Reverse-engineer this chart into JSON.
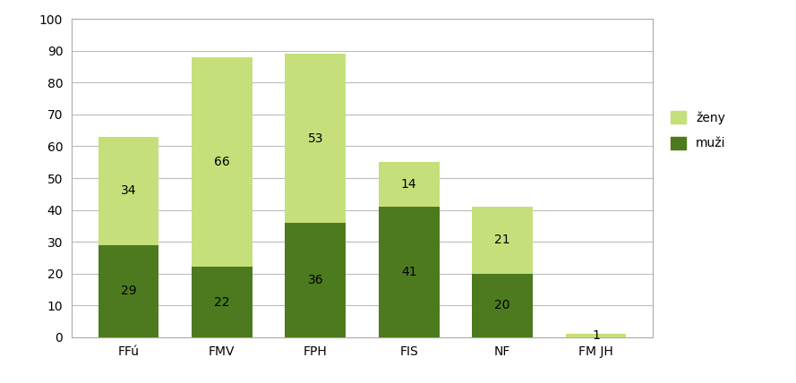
{
  "categories": [
    "FFú",
    "FMV",
    "FPH",
    "FIS",
    "NF",
    "FM JH"
  ],
  "muzi": [
    29,
    22,
    36,
    41,
    20,
    0
  ],
  "zeny": [
    34,
    66,
    53,
    14,
    21,
    1
  ],
  "muzi_labels": [
    29,
    22,
    36,
    41,
    20,
    null
  ],
  "zeny_labels": [
    34,
    66,
    53,
    14,
    21,
    1
  ],
  "color_muzi": "#4d7a1e",
  "color_zeny": "#c5e07a",
  "ylim": [
    0,
    100
  ],
  "yticks": [
    0,
    10,
    20,
    30,
    40,
    50,
    60,
    70,
    80,
    90,
    100
  ],
  "legend_zeny": "ženy",
  "legend_muzi": "muži",
  "background_color": "#ffffff",
  "grid_color": "#bbbbbb",
  "bar_width": 0.65,
  "figsize": [
    8.89,
    4.28
  ],
  "dpi": 100
}
